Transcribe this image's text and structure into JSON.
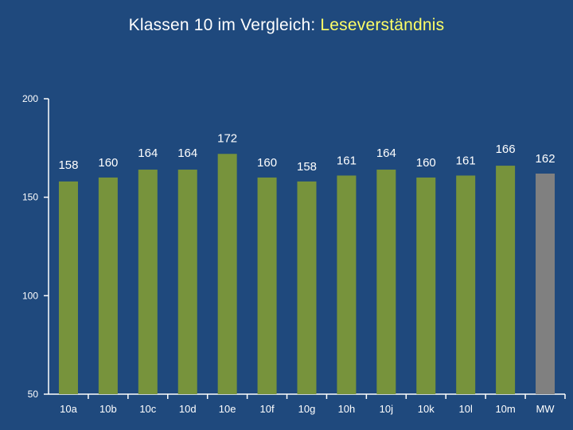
{
  "title": {
    "prefix": "Klassen 10 im Vergleich: ",
    "highlight": "Leseverständnis"
  },
  "colors": {
    "background": "#1f497d",
    "bar": "#77933c",
    "mean_bar": "#808080",
    "highlight": "#ffff66",
    "axis": "#ffffff"
  },
  "chart_data": {
    "type": "bar",
    "title": "Klassen 10 im Vergleich: Leseverständnis",
    "xlabel": "",
    "ylabel": "",
    "ylim": [
      50,
      200
    ],
    "yticks": [
      50,
      100,
      150,
      200
    ],
    "grid": false,
    "categories": [
      "10a",
      "10b",
      "10c",
      "10d",
      "10e",
      "10f",
      "10g",
      "10h",
      "10j",
      "10k",
      "10l",
      "10m",
      "MW"
    ],
    "values": [
      158,
      160,
      164,
      164,
      172,
      160,
      158,
      161,
      164,
      160,
      161,
      166,
      162
    ],
    "bar_colors": [
      "#77933c",
      "#77933c",
      "#77933c",
      "#77933c",
      "#77933c",
      "#77933c",
      "#77933c",
      "#77933c",
      "#77933c",
      "#77933c",
      "#77933c",
      "#77933c",
      "#808080"
    ]
  }
}
